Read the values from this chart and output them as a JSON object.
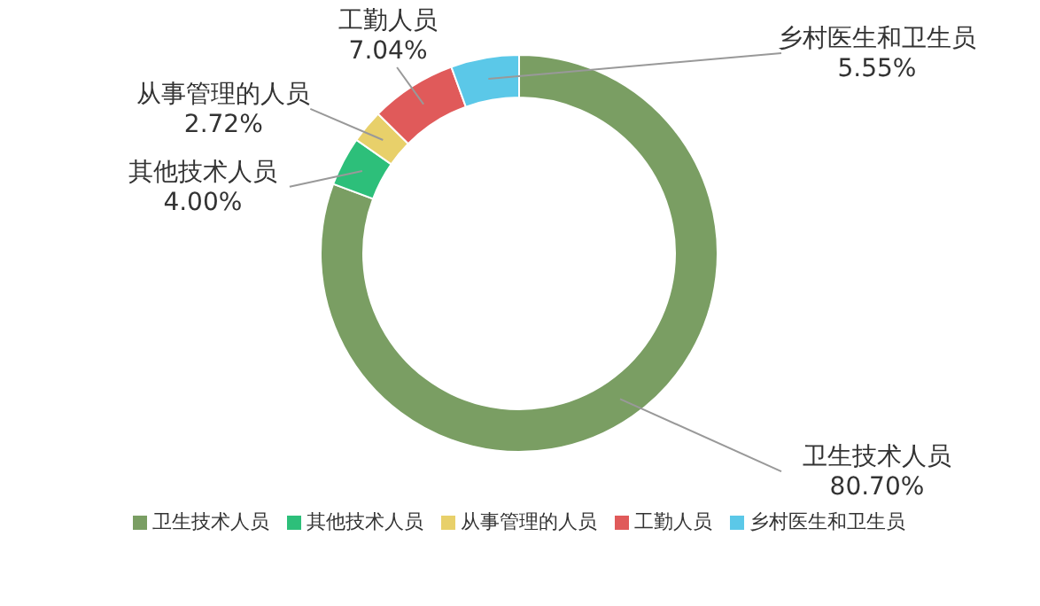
{
  "chart_data": {
    "type": "donut",
    "categories": [
      "卫生技术人员",
      "其他技术人员",
      "从事管理的人员",
      "工勤人员",
      "乡村医生和卫生员"
    ],
    "values": [
      80.7,
      4.0,
      2.72,
      7.04,
      5.55
    ],
    "value_labels": [
      "80.70%",
      "4.00%",
      "2.72%",
      "7.04%",
      "5.55%"
    ],
    "colors": [
      "#7a9e63",
      "#2dbf7a",
      "#e8d06a",
      "#e05a5a",
      "#5bc8e8"
    ],
    "legend": "bottom"
  }
}
